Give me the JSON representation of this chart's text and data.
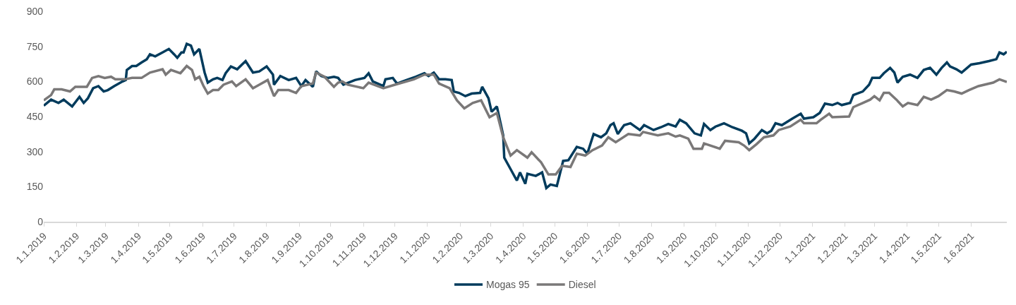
{
  "chart_data": {
    "type": "line",
    "legend": "bottom",
    "grid": false,
    "marker": "none",
    "line_style": "solid",
    "xlim": [
      "2019-01-01",
      "2021-07-05"
    ],
    "xticks": [
      {
        "value": "2019-01-01",
        "label": "1.1.2019"
      },
      {
        "value": "2019-02-01",
        "label": "1.2.2019"
      },
      {
        "value": "2019-03-01",
        "label": "1.3.2019"
      },
      {
        "value": "2019-04-01",
        "label": "1.4.2019"
      },
      {
        "value": "2019-05-01",
        "label": "1.5.2019"
      },
      {
        "value": "2019-06-01",
        "label": "1.6.2019"
      },
      {
        "value": "2019-07-01",
        "label": "1.7.2019"
      },
      {
        "value": "2019-08-01",
        "label": "1.8.2019"
      },
      {
        "value": "2019-09-01",
        "label": "1.9.2019"
      },
      {
        "value": "2019-10-01",
        "label": "1.10.2019"
      },
      {
        "value": "2019-11-01",
        "label": "1.11.2019"
      },
      {
        "value": "2019-12-01",
        "label": "1.12.2019"
      },
      {
        "value": "2020-01-01",
        "label": "1.1.2020"
      },
      {
        "value": "2020-02-01",
        "label": "1.2.2020"
      },
      {
        "value": "2020-03-01",
        "label": "1.3.2020"
      },
      {
        "value": "2020-04-01",
        "label": "1.4.2020"
      },
      {
        "value": "2020-05-01",
        "label": "1.5.2020"
      },
      {
        "value": "2020-06-01",
        "label": "1.6.2020"
      },
      {
        "value": "2020-07-01",
        "label": "1.7.2020"
      },
      {
        "value": "2020-08-01",
        "label": "1.8.2020"
      },
      {
        "value": "2020-09-01",
        "label": "1.9.2020"
      },
      {
        "value": "2020-10-01",
        "label": "1.10.2020"
      },
      {
        "value": "2020-11-01",
        "label": "1.11.2020"
      },
      {
        "value": "2020-12-01",
        "label": "1.12.2020"
      },
      {
        "value": "2021-01-01",
        "label": "1.1.2021"
      },
      {
        "value": "2021-02-01",
        "label": "1.2.2021"
      },
      {
        "value": "2021-03-01",
        "label": "1.3.2021"
      },
      {
        "value": "2021-04-01",
        "label": "1.4.2021"
      },
      {
        "value": "2021-05-01",
        "label": "1.5.2021"
      },
      {
        "value": "2021-06-01",
        "label": "1.6.2021"
      }
    ],
    "ylim": [
      0,
      900
    ],
    "yticks": [
      0,
      150,
      300,
      450,
      600,
      750,
      900
    ],
    "series": [
      {
        "name": "Mogas 95",
        "color": "#003b5c",
        "x": [
          "2019-01-01",
          "2019-01-08",
          "2019-01-15",
          "2019-01-20",
          "2019-01-28",
          "2019-02-04",
          "2019-02-08",
          "2019-02-12",
          "2019-02-17",
          "2019-02-22",
          "2019-02-27",
          "2019-03-03",
          "2019-03-09",
          "2019-03-17",
          "2019-03-20",
          "2019-03-21",
          "2019-03-26",
          "2019-03-30",
          "2019-04-04",
          "2019-04-09",
          "2019-04-12",
          "2019-04-17",
          "2019-04-24",
          "2019-04-30",
          "2019-05-05",
          "2019-05-08",
          "2019-05-12",
          "2019-05-14",
          "2019-05-17",
          "2019-05-21",
          "2019-05-24",
          "2019-05-29",
          "2019-06-03",
          "2019-06-06",
          "2019-06-11",
          "2019-06-15",
          "2019-06-20",
          "2019-06-23",
          "2019-06-28",
          "2019-07-04",
          "2019-07-12",
          "2019-07-19",
          "2019-07-25",
          "2019-08-01",
          "2019-08-07",
          "2019-08-08",
          "2019-08-14",
          "2019-08-22",
          "2019-08-29",
          "2019-09-03",
          "2019-09-07",
          "2019-09-14",
          "2019-09-17",
          "2019-09-22",
          "2019-09-28",
          "2019-10-04",
          "2019-10-08",
          "2019-10-13",
          "2019-10-24",
          "2019-11-02",
          "2019-11-06",
          "2019-11-10",
          "2019-11-20",
          "2019-11-22",
          "2019-11-29",
          "2019-12-03",
          "2019-12-12",
          "2019-12-21",
          "2019-12-29",
          "2020-01-02",
          "2020-01-07",
          "2020-01-12",
          "2020-01-18",
          "2020-01-24",
          "2020-01-26",
          "2020-01-31",
          "2020-02-06",
          "2020-02-12",
          "2020-02-20",
          "2020-02-22",
          "2020-02-28",
          "2020-03-02",
          "2020-03-07",
          "2020-03-13",
          "2020-03-14",
          "2020-03-20",
          "2020-03-26",
          "2020-03-29",
          "2020-04-03",
          "2020-04-05",
          "2020-04-13",
          "2020-04-19",
          "2020-04-23",
          "2020-04-27",
          "2020-05-03",
          "2020-05-05",
          "2020-05-09",
          "2020-05-14",
          "2020-05-22",
          "2020-05-28",
          "2020-06-01",
          "2020-06-07",
          "2020-06-14",
          "2020-06-19",
          "2020-06-23",
          "2020-06-26",
          "2020-06-30",
          "2020-07-06",
          "2020-07-12",
          "2020-07-21",
          "2020-07-25",
          "2020-08-03",
          "2020-08-10",
          "2020-08-17",
          "2020-08-24",
          "2020-08-28",
          "2020-09-03",
          "2020-09-11",
          "2020-09-17",
          "2020-09-20",
          "2020-09-26",
          "2020-10-01",
          "2020-10-09",
          "2020-10-17",
          "2020-10-26",
          "2020-10-30",
          "2020-11-02",
          "2020-11-07",
          "2020-11-14",
          "2020-11-19",
          "2020-11-23",
          "2020-11-27",
          "2020-12-03",
          "2020-12-13",
          "2020-12-21",
          "2020-12-24",
          "2021-01-02",
          "2021-01-08",
          "2021-01-13",
          "2021-01-20",
          "2021-01-25",
          "2021-01-29",
          "2021-02-06",
          "2021-02-09",
          "2021-02-18",
          "2021-02-24",
          "2021-02-27",
          "2021-03-06",
          "2021-03-10",
          "2021-03-16",
          "2021-03-20",
          "2021-03-23",
          "2021-03-28",
          "2021-04-04",
          "2021-04-11",
          "2021-04-17",
          "2021-04-23",
          "2021-04-29",
          "2021-05-04",
          "2021-05-09",
          "2021-05-12",
          "2021-05-18",
          "2021-05-23",
          "2021-06-01",
          "2021-06-09",
          "2021-06-18",
          "2021-06-25",
          "2021-06-28",
          "2021-07-02",
          "2021-07-05"
        ],
        "values": [
          496,
          522,
          508,
          522,
          493,
          534,
          508,
          528,
          571,
          580,
          557,
          563,
          580,
          600,
          606,
          649,
          666,
          666,
          681,
          695,
          716,
          707,
          724,
          739,
          716,
          701,
          724,
          724,
          761,
          753,
          716,
          739,
          638,
          595,
          609,
          615,
          606,
          635,
          664,
          652,
          687,
          638,
          643,
          664,
          629,
          586,
          623,
          606,
          615,
          580,
          606,
          577,
          643,
          623,
          615,
          620,
          615,
          586,
          606,
          615,
          635,
          600,
          580,
          609,
          615,
          591,
          606,
          620,
          635,
          623,
          638,
          609,
          609,
          606,
          557,
          551,
          537,
          548,
          551,
          577,
          528,
          470,
          493,
          369,
          274,
          225,
          176,
          211,
          162,
          205,
          196,
          211,
          144,
          159,
          153,
          188,
          260,
          263,
          320,
          312,
          291,
          375,
          361,
          378,
          413,
          421,
          375,
          413,
          421,
          392,
          413,
          392,
          404,
          418,
          407,
          436,
          421,
          378,
          369,
          418,
          392,
          407,
          421,
          404,
          389,
          378,
          335,
          355,
          392,
          378,
          389,
          421,
          413,
          441,
          462,
          441,
          447,
          465,
          505,
          499,
          508,
          499,
          508,
          542,
          557,
          586,
          615,
          615,
          635,
          658,
          638,
          595,
          620,
          629,
          615,
          649,
          658,
          629,
          658,
          681,
          664,
          652,
          638,
          672,
          678,
          687,
          695,
          724,
          716,
          727
        ]
      },
      {
        "name": "Diesel",
        "color": "#7a7878",
        "x": [
          "2019-01-01",
          "2019-01-08",
          "2019-01-11",
          "2019-01-18",
          "2019-01-26",
          "2019-01-31",
          "2019-02-11",
          "2019-02-16",
          "2019-02-22",
          "2019-02-28",
          "2019-03-06",
          "2019-03-10",
          "2019-03-19",
          "2019-03-26",
          "2019-04-04",
          "2019-04-12",
          "2019-04-24",
          "2019-04-27",
          "2019-05-02",
          "2019-05-11",
          "2019-05-17",
          "2019-05-22",
          "2019-05-25",
          "2019-05-29",
          "2019-06-02",
          "2019-06-06",
          "2019-06-11",
          "2019-06-16",
          "2019-06-21",
          "2019-06-29",
          "2019-07-03",
          "2019-07-12",
          "2019-07-19",
          "2019-07-25",
          "2019-08-02",
          "2019-08-08",
          "2019-08-12",
          "2019-08-22",
          "2019-08-29",
          "2019-09-03",
          "2019-09-14",
          "2019-09-17",
          "2019-09-25",
          "2019-10-04",
          "2019-10-08",
          "2019-10-12",
          "2019-10-17",
          "2019-11-01",
          "2019-11-06",
          "2019-11-20",
          "2019-12-01",
          "2019-12-08",
          "2019-12-19",
          "2019-12-29",
          "2020-01-07",
          "2020-01-12",
          "2020-01-22",
          "2020-01-29",
          "2020-02-05",
          "2020-02-13",
          "2020-02-21",
          "2020-02-29",
          "2020-03-07",
          "2020-03-13",
          "2020-03-20",
          "2020-03-26",
          "2020-04-05",
          "2020-04-09",
          "2020-04-18",
          "2020-04-25",
          "2020-05-02",
          "2020-05-08",
          "2020-05-16",
          "2020-05-22",
          "2020-05-30",
          "2020-06-06",
          "2020-06-15",
          "2020-06-21",
          "2020-06-28",
          "2020-07-10",
          "2020-07-21",
          "2020-07-24",
          "2020-08-07",
          "2020-08-17",
          "2020-08-24",
          "2020-08-28",
          "2020-09-05",
          "2020-09-10",
          "2020-09-18",
          "2020-09-20",
          "2020-10-05",
          "2020-10-10",
          "2020-10-23",
          "2020-10-28",
          "2020-11-02",
          "2020-11-09",
          "2020-11-16",
          "2020-11-25",
          "2020-11-30",
          "2020-12-11",
          "2020-12-21",
          "2020-12-24",
          "2021-01-05",
          "2021-01-09",
          "2021-01-17",
          "2021-01-20",
          "2021-02-05",
          "2021-02-09",
          "2021-02-18",
          "2021-02-25",
          "2021-03-01",
          "2021-03-06",
          "2021-03-10",
          "2021-03-15",
          "2021-03-22",
          "2021-03-28",
          "2021-04-02",
          "2021-04-11",
          "2021-04-17",
          "2021-04-24",
          "2021-05-01",
          "2021-05-09",
          "2021-05-16",
          "2021-05-23",
          "2021-05-30",
          "2021-06-08",
          "2021-06-22",
          "2021-06-28",
          "2021-07-05"
        ],
        "values": [
          519,
          542,
          566,
          566,
          557,
          577,
          577,
          615,
          623,
          615,
          620,
          609,
          609,
          615,
          615,
          638,
          652,
          629,
          649,
          635,
          666,
          649,
          609,
          620,
          580,
          548,
          563,
          563,
          586,
          600,
          580,
          609,
          571,
          586,
          606,
          537,
          563,
          563,
          551,
          580,
          591,
          638,
          620,
          577,
          595,
          600,
          586,
          571,
          595,
          571,
          586,
          595,
          609,
          629,
          629,
          591,
          571,
          519,
          485,
          508,
          519,
          447,
          465,
          361,
          283,
          306,
          274,
          297,
          254,
          202,
          202,
          239,
          234,
          291,
          283,
          306,
          326,
          361,
          340,
          375,
          369,
          384,
          369,
          378,
          364,
          369,
          355,
          312,
          312,
          335,
          312,
          346,
          340,
          326,
          306,
          332,
          361,
          369,
          392,
          407,
          436,
          421,
          421,
          436,
          462,
          447,
          450,
          490,
          508,
          522,
          537,
          519,
          551,
          551,
          522,
          493,
          508,
          499,
          534,
          522,
          537,
          563,
          557,
          548,
          563,
          580,
          595,
          609,
          598
        ]
      }
    ]
  }
}
